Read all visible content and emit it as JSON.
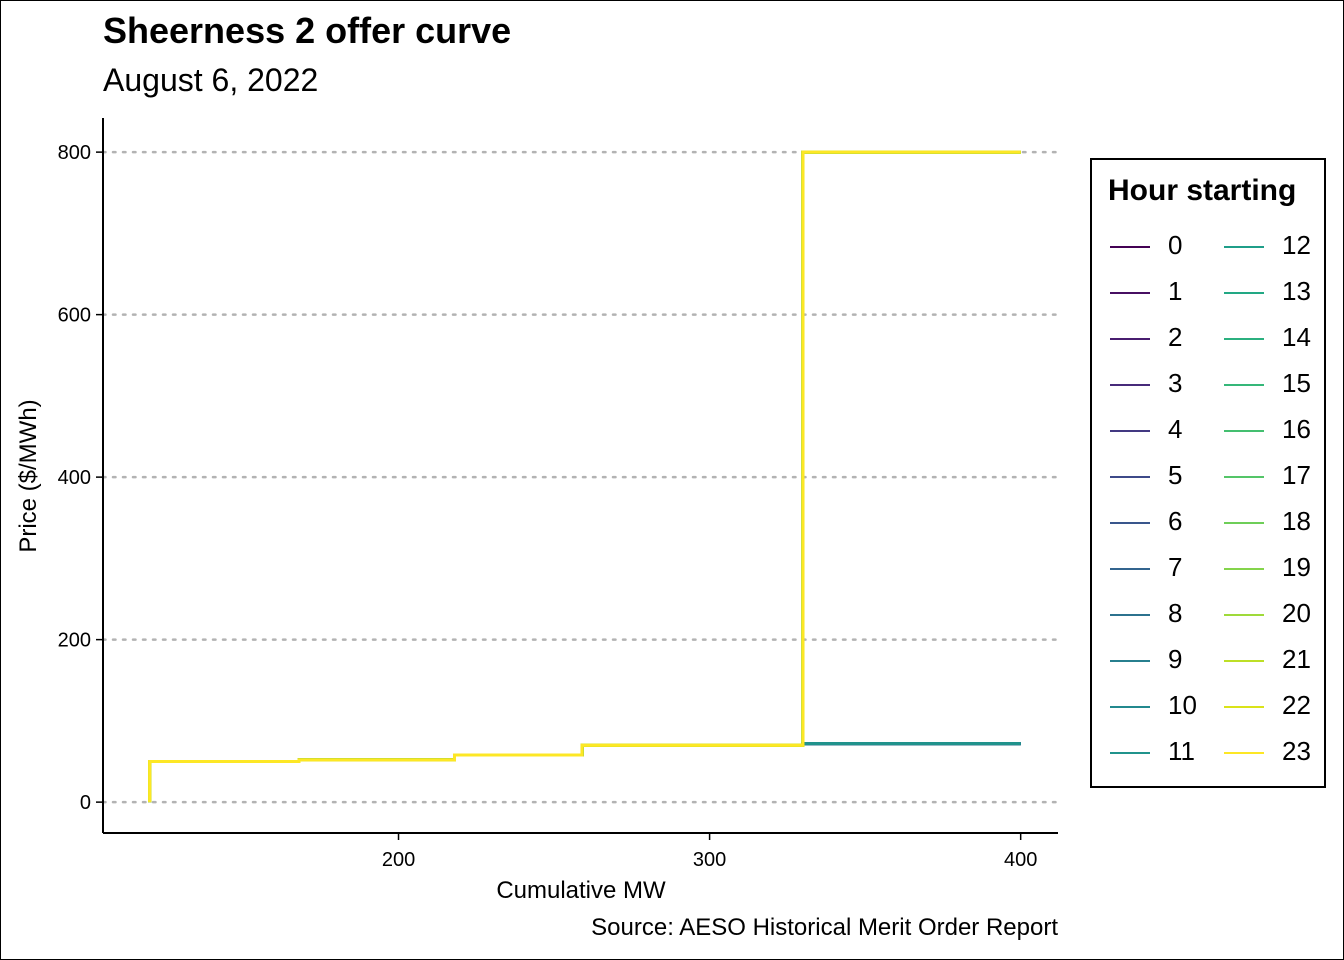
{
  "chart_data": {
    "type": "line",
    "title": "Sheerness 2 offer curve",
    "subtitle": "August 6, 2022",
    "xlabel": "Cumulative MW",
    "ylabel": "Price ($/MWh)",
    "caption": "Source: AESO Historical Merit Order Report",
    "xlim": [
      105,
      412
    ],
    "ylim": [
      -38,
      842
    ],
    "xticks": [
      200,
      300,
      400
    ],
    "yticks": [
      0,
      200,
      400,
      600,
      800
    ],
    "grid": "horizontal dotted",
    "legend": {
      "title": "Hour starting",
      "position": "right",
      "columns": 2
    },
    "series": [
      {
        "name": "0",
        "color": "#440154",
        "steps": [
          [
            120,
            0
          ],
          [
            120,
            50
          ],
          [
            168,
            50
          ],
          [
            168,
            52
          ],
          [
            218,
            52
          ],
          [
            218,
            58
          ],
          [
            259,
            58
          ],
          [
            259,
            70
          ],
          [
            330,
            70
          ],
          [
            330,
            72
          ],
          [
            400,
            72
          ]
        ]
      },
      {
        "name": "1",
        "color": "#470F62",
        "steps": [
          [
            120,
            0
          ],
          [
            120,
            50
          ],
          [
            168,
            50
          ],
          [
            168,
            52
          ],
          [
            218,
            52
          ],
          [
            218,
            58
          ],
          [
            259,
            58
          ],
          [
            259,
            70
          ],
          [
            330,
            70
          ],
          [
            330,
            72
          ],
          [
            400,
            72
          ]
        ]
      },
      {
        "name": "2",
        "color": "#481D6F",
        "steps": [
          [
            120,
            0
          ],
          [
            120,
            50
          ],
          [
            168,
            50
          ],
          [
            168,
            52
          ],
          [
            218,
            52
          ],
          [
            218,
            58
          ],
          [
            259,
            58
          ],
          [
            259,
            70
          ],
          [
            330,
            70
          ],
          [
            330,
            72
          ],
          [
            400,
            72
          ]
        ]
      },
      {
        "name": "3",
        "color": "#472A7A",
        "steps": [
          [
            120,
            0
          ],
          [
            120,
            50
          ],
          [
            168,
            50
          ],
          [
            168,
            52
          ],
          [
            218,
            52
          ],
          [
            218,
            58
          ],
          [
            259,
            58
          ],
          [
            259,
            70
          ],
          [
            330,
            70
          ],
          [
            330,
            72
          ],
          [
            400,
            72
          ]
        ]
      },
      {
        "name": "4",
        "color": "#433982",
        "steps": [
          [
            120,
            0
          ],
          [
            120,
            50
          ],
          [
            168,
            50
          ],
          [
            168,
            52
          ],
          [
            218,
            52
          ],
          [
            218,
            58
          ],
          [
            259,
            58
          ],
          [
            259,
            70
          ],
          [
            330,
            70
          ],
          [
            330,
            72
          ],
          [
            400,
            72
          ]
        ]
      },
      {
        "name": "5",
        "color": "#3E4A89",
        "steps": [
          [
            120,
            0
          ],
          [
            120,
            50
          ],
          [
            168,
            50
          ],
          [
            168,
            52
          ],
          [
            218,
            52
          ],
          [
            218,
            58
          ],
          [
            259,
            58
          ],
          [
            259,
            70
          ],
          [
            330,
            70
          ],
          [
            330,
            72
          ],
          [
            400,
            72
          ]
        ]
      },
      {
        "name": "6",
        "color": "#39568C",
        "steps": [
          [
            120,
            0
          ],
          [
            120,
            50
          ],
          [
            168,
            50
          ],
          [
            168,
            52
          ],
          [
            218,
            52
          ],
          [
            218,
            58
          ],
          [
            259,
            58
          ],
          [
            259,
            70
          ],
          [
            330,
            70
          ],
          [
            330,
            72
          ],
          [
            400,
            72
          ]
        ]
      },
      {
        "name": "7",
        "color": "#32648E",
        "steps": [
          [
            120,
            0
          ],
          [
            120,
            50
          ],
          [
            168,
            50
          ],
          [
            168,
            52
          ],
          [
            218,
            52
          ],
          [
            218,
            58
          ],
          [
            259,
            58
          ],
          [
            259,
            70
          ],
          [
            330,
            70
          ],
          [
            330,
            72
          ],
          [
            400,
            72
          ]
        ]
      },
      {
        "name": "8",
        "color": "#2C728E",
        "steps": [
          [
            120,
            0
          ],
          [
            120,
            50
          ],
          [
            168,
            50
          ],
          [
            168,
            52
          ],
          [
            218,
            52
          ],
          [
            218,
            58
          ],
          [
            259,
            58
          ],
          [
            259,
            70
          ],
          [
            330,
            70
          ],
          [
            330,
            72
          ],
          [
            400,
            72
          ]
        ]
      },
      {
        "name": "9",
        "color": "#277F8E",
        "steps": [
          [
            120,
            0
          ],
          [
            120,
            50
          ],
          [
            168,
            50
          ],
          [
            168,
            52
          ],
          [
            218,
            52
          ],
          [
            218,
            58
          ],
          [
            259,
            58
          ],
          [
            259,
            70
          ],
          [
            330,
            70
          ],
          [
            330,
            72
          ],
          [
            400,
            72
          ]
        ]
      },
      {
        "name": "10",
        "color": "#23898E",
        "steps": [
          [
            120,
            0
          ],
          [
            120,
            50
          ],
          [
            168,
            50
          ],
          [
            168,
            52
          ],
          [
            218,
            52
          ],
          [
            218,
            58
          ],
          [
            259,
            58
          ],
          [
            259,
            70
          ],
          [
            330,
            70
          ],
          [
            330,
            72
          ],
          [
            400,
            72
          ]
        ]
      },
      {
        "name": "11",
        "color": "#20938C",
        "steps": [
          [
            120,
            0
          ],
          [
            120,
            50
          ],
          [
            168,
            50
          ],
          [
            168,
            52
          ],
          [
            218,
            52
          ],
          [
            218,
            58
          ],
          [
            259,
            58
          ],
          [
            259,
            70
          ],
          [
            330,
            70
          ],
          [
            330,
            72
          ],
          [
            400,
            72
          ]
        ]
      },
      {
        "name": "12",
        "color": "#1F9E89",
        "steps": [
          [
            120,
            0
          ],
          [
            120,
            50
          ],
          [
            168,
            50
          ],
          [
            168,
            52
          ],
          [
            218,
            52
          ],
          [
            218,
            58
          ],
          [
            259,
            58
          ],
          [
            259,
            70
          ],
          [
            330,
            70
          ],
          [
            330,
            800
          ],
          [
            400,
            800
          ]
        ]
      },
      {
        "name": "13",
        "color": "#22A884",
        "steps": [
          [
            120,
            0
          ],
          [
            120,
            50
          ],
          [
            168,
            50
          ],
          [
            168,
            52
          ],
          [
            218,
            52
          ],
          [
            218,
            58
          ],
          [
            259,
            58
          ],
          [
            259,
            70
          ],
          [
            330,
            70
          ],
          [
            330,
            800
          ],
          [
            400,
            800
          ]
        ]
      },
      {
        "name": "14",
        "color": "#2BB07F",
        "steps": [
          [
            120,
            0
          ],
          [
            120,
            50
          ],
          [
            168,
            50
          ],
          [
            168,
            52
          ],
          [
            218,
            52
          ],
          [
            218,
            58
          ],
          [
            259,
            58
          ],
          [
            259,
            70
          ],
          [
            330,
            70
          ],
          [
            330,
            800
          ],
          [
            400,
            800
          ]
        ]
      },
      {
        "name": "15",
        "color": "#35B779",
        "steps": [
          [
            120,
            0
          ],
          [
            120,
            50
          ],
          [
            168,
            50
          ],
          [
            168,
            52
          ],
          [
            218,
            52
          ],
          [
            218,
            58
          ],
          [
            259,
            58
          ],
          [
            259,
            70
          ],
          [
            330,
            70
          ],
          [
            330,
            800
          ],
          [
            400,
            800
          ]
        ]
      },
      {
        "name": "16",
        "color": "#44BF70",
        "steps": [
          [
            120,
            0
          ],
          [
            120,
            50
          ],
          [
            168,
            50
          ],
          [
            168,
            52
          ],
          [
            218,
            52
          ],
          [
            218,
            58
          ],
          [
            259,
            58
          ],
          [
            259,
            70
          ],
          [
            330,
            70
          ],
          [
            330,
            800
          ],
          [
            400,
            800
          ]
        ]
      },
      {
        "name": "17",
        "color": "#54C568",
        "steps": [
          [
            120,
            0
          ],
          [
            120,
            50
          ],
          [
            168,
            50
          ],
          [
            168,
            52
          ],
          [
            218,
            52
          ],
          [
            218,
            58
          ],
          [
            259,
            58
          ],
          [
            259,
            70
          ],
          [
            330,
            70
          ],
          [
            330,
            800
          ],
          [
            400,
            800
          ]
        ]
      },
      {
        "name": "18",
        "color": "#6ECE58",
        "steps": [
          [
            120,
            0
          ],
          [
            120,
            50
          ],
          [
            168,
            50
          ],
          [
            168,
            52
          ],
          [
            218,
            52
          ],
          [
            218,
            58
          ],
          [
            259,
            58
          ],
          [
            259,
            70
          ],
          [
            330,
            70
          ],
          [
            330,
            800
          ],
          [
            400,
            800
          ]
        ]
      },
      {
        "name": "19",
        "color": "#84D44B",
        "steps": [
          [
            120,
            0
          ],
          [
            120,
            50
          ],
          [
            168,
            50
          ],
          [
            168,
            52
          ],
          [
            218,
            52
          ],
          [
            218,
            58
          ],
          [
            259,
            58
          ],
          [
            259,
            70
          ],
          [
            330,
            70
          ],
          [
            330,
            800
          ],
          [
            400,
            800
          ]
        ]
      },
      {
        "name": "20",
        "color": "#9FDA3A",
        "steps": [
          [
            120,
            0
          ],
          [
            120,
            50
          ],
          [
            168,
            50
          ],
          [
            168,
            52
          ],
          [
            218,
            52
          ],
          [
            218,
            58
          ],
          [
            259,
            58
          ],
          [
            259,
            70
          ],
          [
            330,
            70
          ],
          [
            330,
            800
          ],
          [
            400,
            800
          ]
        ]
      },
      {
        "name": "21",
        "color": "#BDDF26",
        "steps": [
          [
            120,
            0
          ],
          [
            120,
            50
          ],
          [
            168,
            50
          ],
          [
            168,
            52
          ],
          [
            218,
            52
          ],
          [
            218,
            58
          ],
          [
            259,
            58
          ],
          [
            259,
            70
          ],
          [
            330,
            70
          ],
          [
            330,
            800
          ],
          [
            400,
            800
          ]
        ]
      },
      {
        "name": "22",
        "color": "#DAE319",
        "steps": [
          [
            120,
            0
          ],
          [
            120,
            50
          ],
          [
            168,
            50
          ],
          [
            168,
            52
          ],
          [
            218,
            52
          ],
          [
            218,
            58
          ],
          [
            259,
            58
          ],
          [
            259,
            70
          ],
          [
            330,
            70
          ],
          [
            330,
            800
          ],
          [
            400,
            800
          ]
        ]
      },
      {
        "name": "23",
        "color": "#FDE725",
        "steps": [
          [
            120,
            0
          ],
          [
            120,
            50
          ],
          [
            168,
            50
          ],
          [
            168,
            52
          ],
          [
            218,
            52
          ],
          [
            218,
            58
          ],
          [
            259,
            58
          ],
          [
            259,
            70
          ],
          [
            330,
            70
          ],
          [
            330,
            800
          ],
          [
            400,
            800
          ]
        ]
      }
    ]
  }
}
